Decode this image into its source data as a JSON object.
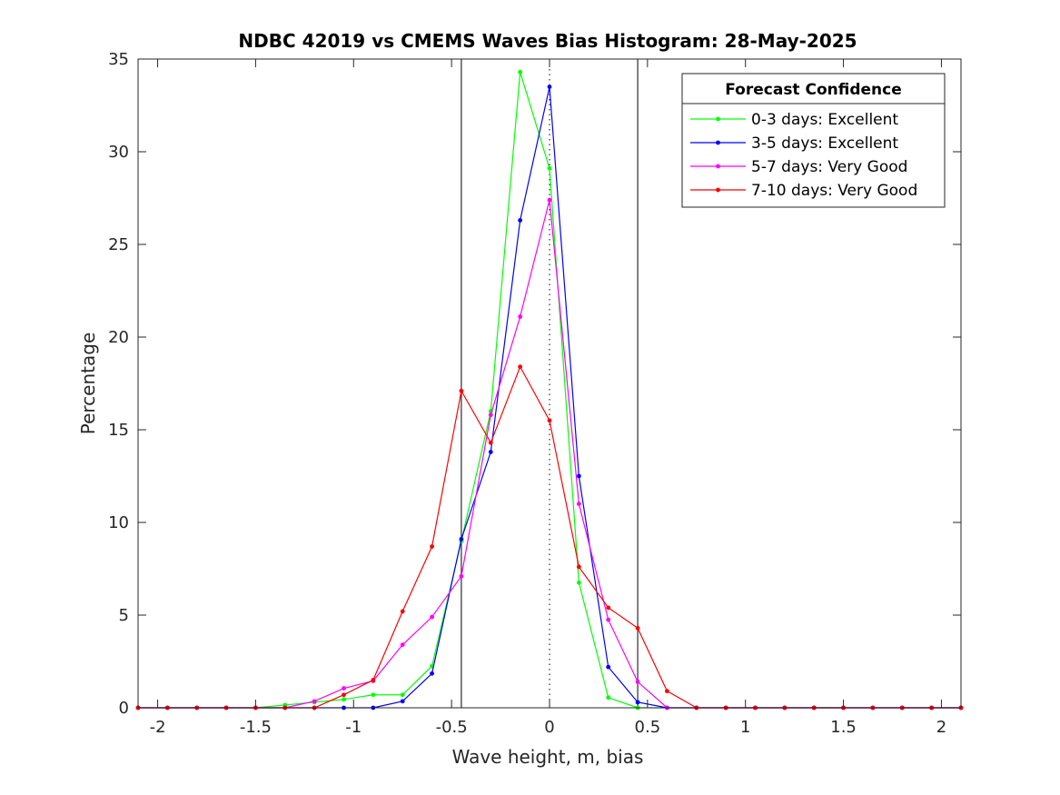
{
  "chart_data": {
    "type": "line",
    "title": "NDBC 42019 vs CMEMS Waves Bias Histogram: 28-May-2025",
    "xlabel": "Wave height, m, bias",
    "ylabel": "Percentage",
    "xlim": [
      -2.1,
      2.1
    ],
    "ylim": [
      0,
      35
    ],
    "xticks": [
      -2,
      -1.5,
      -1,
      -0.5,
      0,
      0.5,
      1,
      1.5,
      2
    ],
    "xtick_labels": [
      "-2",
      "-1.5",
      "-1",
      "-0.5",
      "0",
      "0.5",
      "1",
      "1.5",
      "2"
    ],
    "yticks": [
      0,
      5,
      10,
      15,
      20,
      25,
      30,
      35
    ],
    "ytick_labels": [
      "0",
      "5",
      "10",
      "15",
      "20",
      "25",
      "30",
      "35"
    ],
    "vertical_lines": [
      {
        "x": -0.45,
        "style": "solid"
      },
      {
        "x": 0,
        "style": "dotted"
      },
      {
        "x": 0.45,
        "style": "solid"
      }
    ],
    "legend": {
      "title": "Forecast Confidence",
      "position": "top-right"
    },
    "x": [
      -2.1,
      -1.95,
      -1.8,
      -1.65,
      -1.5,
      -1.35,
      -1.2,
      -1.05,
      -0.9,
      -0.75,
      -0.6,
      -0.45,
      -0.3,
      -0.15,
      0,
      0.15,
      0.3,
      0.45,
      0.6,
      0.75,
      0.9,
      1.05,
      1.2,
      1.35,
      1.5,
      1.65,
      1.8,
      1.95,
      2.1
    ],
    "series": [
      {
        "name": "0-3 days: Excellent",
        "color": "#00ff00",
        "values": [
          0,
          0,
          0,
          0,
          0,
          0.15,
          0.3,
          0.45,
          0.7,
          0.7,
          2.25,
          9.0,
          16.0,
          34.3,
          29.1,
          6.75,
          0.55,
          0,
          0,
          0,
          0,
          0,
          0,
          0,
          0,
          0,
          0,
          0,
          0
        ]
      },
      {
        "name": "3-5 days: Excellent",
        "color": "#0000ff",
        "values": [
          0,
          0,
          0,
          0,
          0,
          0,
          0,
          0,
          0,
          0.35,
          1.85,
          9.1,
          13.8,
          26.3,
          33.5,
          12.5,
          2.2,
          0.3,
          0,
          0,
          0,
          0,
          0,
          0,
          0,
          0,
          0,
          0,
          0
        ]
      },
      {
        "name": "5-7 days: Very Good",
        "color": "#ff00ff",
        "values": [
          0,
          0,
          0,
          0,
          0,
          0,
          0.35,
          1.05,
          1.45,
          3.4,
          4.9,
          7.1,
          15.8,
          21.1,
          27.4,
          11.0,
          4.75,
          1.4,
          0,
          0,
          0,
          0,
          0,
          0,
          0,
          0,
          0,
          0,
          0
        ]
      },
      {
        "name": "7-10 days: Very Good",
        "color": "#ff0000",
        "values": [
          0,
          0,
          0,
          0,
          0,
          0,
          0,
          0.7,
          1.5,
          5.2,
          8.7,
          17.1,
          14.3,
          18.4,
          15.5,
          7.6,
          5.4,
          4.3,
          0.9,
          0,
          0,
          0,
          0,
          0,
          0,
          0,
          0,
          0,
          0
        ]
      }
    ]
  }
}
